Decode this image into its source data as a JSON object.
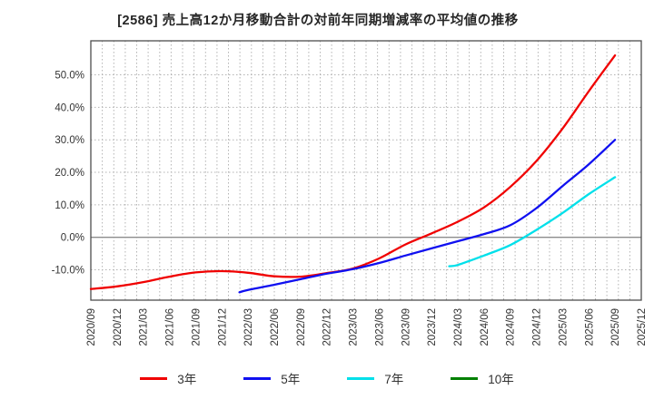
{
  "chart_data": {
    "type": "line",
    "title": "[2586]  売上高12か月移動合計の対前年同期増減率の平均値の推移",
    "x_labels": [
      "2020/09",
      "2020/12",
      "2021/03",
      "2021/06",
      "2021/09",
      "2021/12",
      "2022/03",
      "2022/06",
      "2022/09",
      "2022/12",
      "2023/03",
      "2023/06",
      "2023/09",
      "2023/12",
      "2024/03",
      "2024/06",
      "2024/09",
      "2024/12",
      "2025/03",
      "2025/06",
      "2025/09",
      "2025/12"
    ],
    "y_ticks": [
      50,
      40,
      30,
      20,
      10,
      0,
      -10
    ],
    "y_tick_labels": [
      "50.0%",
      "40.0%",
      "30.0%",
      "20.0%",
      "10.0%",
      "0.0%",
      "-10.0%"
    ],
    "ylim": [
      -19.5,
      60.5
    ],
    "grid": "dotted",
    "zero_line": true,
    "legend_position": "bottom",
    "series": [
      {
        "name": "3年",
        "color": "#f00000",
        "x_index": [
          0,
          1,
          2,
          3,
          4,
          5,
          6,
          7,
          8,
          9,
          10,
          11,
          12,
          13,
          14,
          15,
          16,
          17,
          18,
          19,
          20
        ],
        "values": [
          -15.9,
          -15.1,
          -13.8,
          -12.1,
          -10.8,
          -10.4,
          -10.9,
          -12.0,
          -12.1,
          -11.0,
          -9.6,
          -6.5,
          -2.2,
          1.2,
          4.8,
          9.2,
          15.5,
          23.5,
          33.5,
          45.0,
          56.0
        ]
      },
      {
        "name": "5年",
        "color": "#1010f0",
        "x_index": [
          5.67,
          6,
          7,
          8,
          9,
          10,
          11,
          12,
          13,
          14,
          15,
          16,
          17,
          18,
          19,
          20
        ],
        "values": [
          -16.9,
          -16.2,
          -14.6,
          -12.9,
          -11.2,
          -9.8,
          -7.9,
          -5.6,
          -3.4,
          -1.2,
          1.0,
          3.7,
          9.0,
          15.8,
          22.5,
          30.0
        ]
      },
      {
        "name": "7年",
        "color": "#00e0ea",
        "x_index": [
          13.67,
          14,
          15,
          16,
          17,
          18,
          19,
          20
        ],
        "values": [
          -8.9,
          -8.5,
          -5.6,
          -2.4,
          2.3,
          7.5,
          13.3,
          18.5
        ]
      },
      {
        "name": "10年",
        "color": "#008000",
        "x_index": [],
        "values": []
      }
    ]
  },
  "colors": {
    "spine": "#4d4d4d",
    "grid": "#b3b3b3",
    "zero_line": "#8c8c8c",
    "tick_text": "#333333"
  }
}
